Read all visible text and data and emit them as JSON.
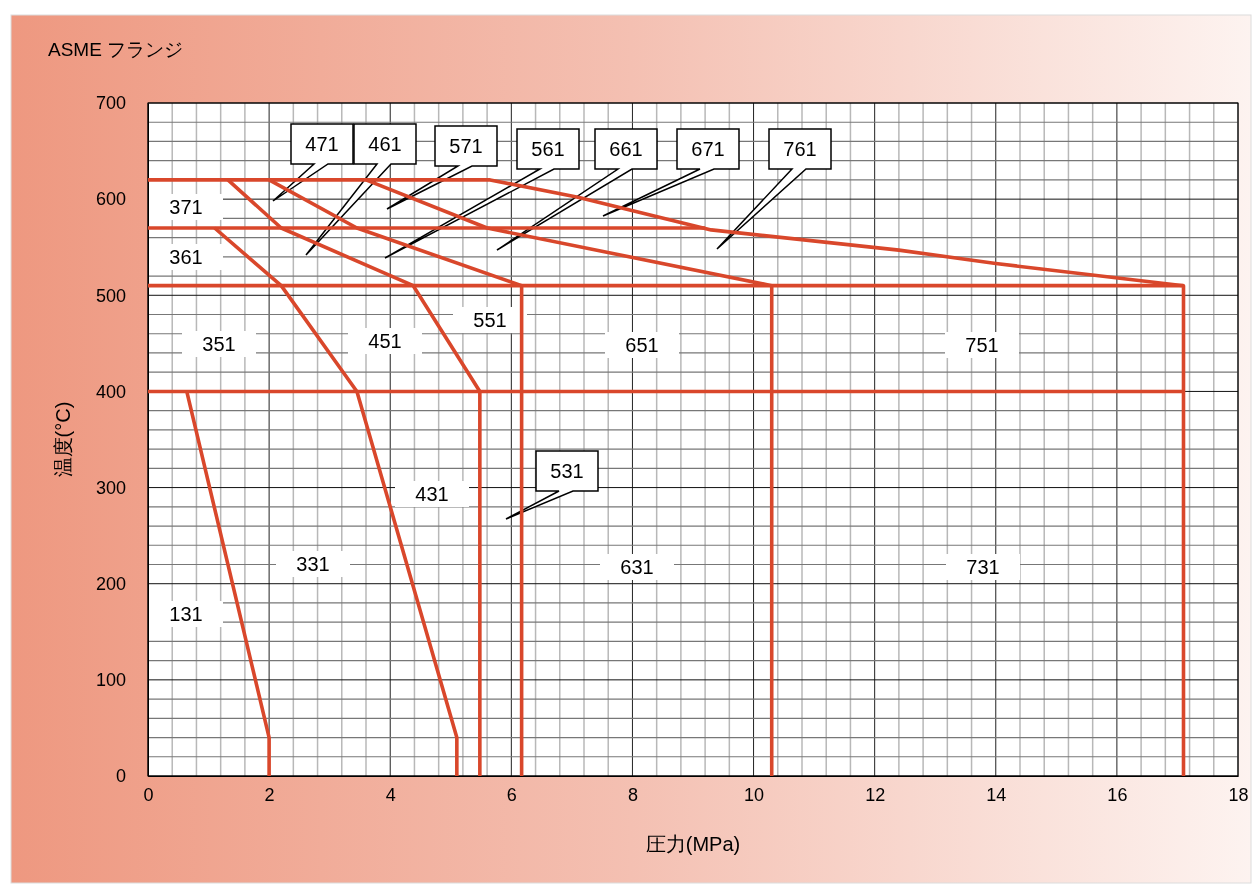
{
  "chart_data": {
    "type": "line",
    "title": "ASME フランジ",
    "xlabel": "圧力(MPa)",
    "ylabel": "温度(°C)",
    "xlim": [
      0,
      18
    ],
    "xticks": [
      0,
      2,
      4,
      6,
      8,
      10,
      12,
      14,
      16,
      18
    ],
    "ylim": [
      0,
      700
    ],
    "yticks": [
      0,
      100,
      200,
      300,
      400,
      500,
      600,
      700
    ],
    "grid": true,
    "series": [
      {
        "color": "#d9472b",
        "x": [
          2,
          2,
          0.64
        ],
        "values": [
          0,
          40,
          400
        ]
      },
      {
        "color": "#d9472b",
        "x": [
          5.1,
          5.1,
          3.45,
          2.2,
          1.1
        ],
        "values": [
          0,
          40,
          400,
          510,
          570
        ]
      },
      {
        "color": "#d9472b",
        "x": [
          5.48,
          5.48,
          4.38,
          2.2,
          1.32
        ],
        "values": [
          0,
          400,
          510,
          570,
          620
        ]
      },
      {
        "color": "#d9472b",
        "x": [
          6.17,
          6.17,
          3.45,
          2.0
        ],
        "values": [
          0,
          510,
          570,
          620
        ]
      },
      {
        "color": "#d9472b",
        "x": [
          10.3,
          10.3,
          5.6,
          3.6
        ],
        "values": [
          0,
          510,
          570,
          620
        ]
      },
      {
        "color": "#d9472b",
        "x": [
          17.1,
          17.1,
          14.0,
          12.4,
          9.3,
          7.1,
          5.65,
          0
        ],
        "values": [
          0,
          510,
          533,
          547,
          568,
          602,
          620,
          620
        ]
      },
      {
        "color": "#d9472b",
        "x": [
          0,
          9.2
        ],
        "values": [
          570,
          570
        ]
      },
      {
        "color": "#d9472b",
        "x": [
          0,
          17.1
        ],
        "values": [
          510,
          510
        ]
      },
      {
        "color": "#d9472b",
        "x": [
          0,
          17.1
        ],
        "values": [
          400,
          400
        ]
      }
    ],
    "annotations": [
      "371",
      "361",
      "351",
      "451",
      "551",
      "651",
      "751",
      "431",
      "331",
      "631",
      "731",
      "131",
      "471",
      "461",
      "571",
      "561",
      "661",
      "671",
      "761",
      "531"
    ]
  }
}
